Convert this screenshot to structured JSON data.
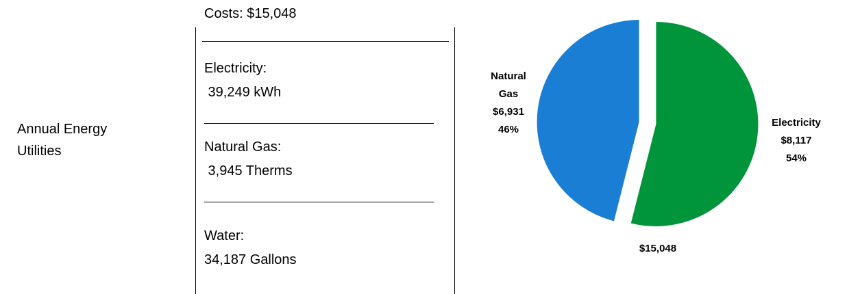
{
  "label": "Annual Energy Utilities",
  "summary": {
    "costs": "Costs: $15,048",
    "items": [
      {
        "name": "Electricity:",
        "amount": " 39,249 kWh"
      },
      {
        "name": "Natural Gas:",
        "amount": " 3,945 Therms"
      },
      {
        "name": "Water:",
        "amount": "34,187 Gallons"
      }
    ]
  },
  "chart_data": {
    "type": "pie",
    "categories": [
      "Electricity",
      "Natural Gas"
    ],
    "values": [
      8117,
      6931
    ],
    "value_labels": [
      "$8,117",
      "$6,931"
    ],
    "percent_labels": [
      "54%",
      "46%"
    ],
    "colors": [
      "#00953a",
      "#1a7fd4"
    ],
    "total_label": "$15,048"
  }
}
